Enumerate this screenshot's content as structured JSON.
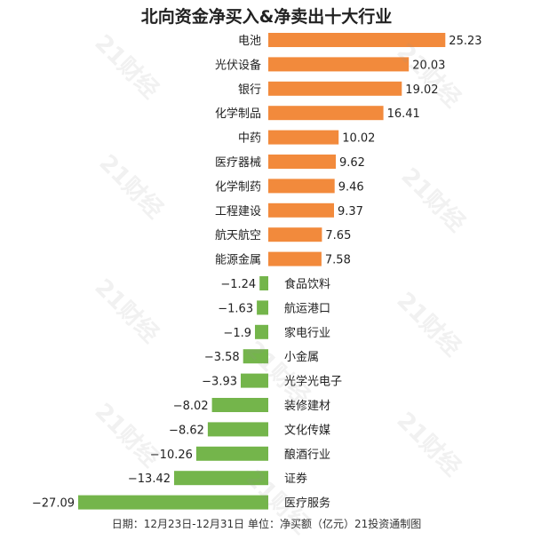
{
  "chart_data": {
    "type": "bar",
    "orientation": "horizontal",
    "title": "北向资金净买入&净卖出十大行业",
    "footer": "日期：12月23日-12月31日 单位：净买额（亿元）21投资通制图",
    "watermark": "21财经",
    "colors": {
      "positive": "#f28a3c",
      "negative": "#74b54b"
    },
    "categories": [
      "电池",
      "光伏设备",
      "银行",
      "化学制品",
      "中药",
      "医疗器械",
      "化学制药",
      "工程建设",
      "航天航空",
      "能源金属",
      "食品饮料",
      "航运港口",
      "家电行业",
      "小金属",
      "光学光电子",
      "装修建材",
      "文化传媒",
      "酿酒行业",
      "证券",
      "医疗服务"
    ],
    "values": [
      25.23,
      20.03,
      19.02,
      16.41,
      10.02,
      9.62,
      9.46,
      9.37,
      7.65,
      7.58,
      -1.24,
      -1.63,
      -1.9,
      -3.58,
      -3.93,
      -8.02,
      -8.62,
      -10.26,
      -13.42,
      -27.09
    ],
    "value_labels": [
      "25.23",
      "20.03",
      "19.02",
      "16.41",
      "10.02",
      "9.62",
      "9.46",
      "9.37",
      "7.65",
      "7.58",
      "−1.24",
      "−1.63",
      "−1.9",
      "−3.58",
      "−3.93",
      "−8.02",
      "−8.62",
      "−10.26",
      "−13.42",
      "−27.09"
    ],
    "xlim": [
      -27.09,
      25.23
    ]
  }
}
